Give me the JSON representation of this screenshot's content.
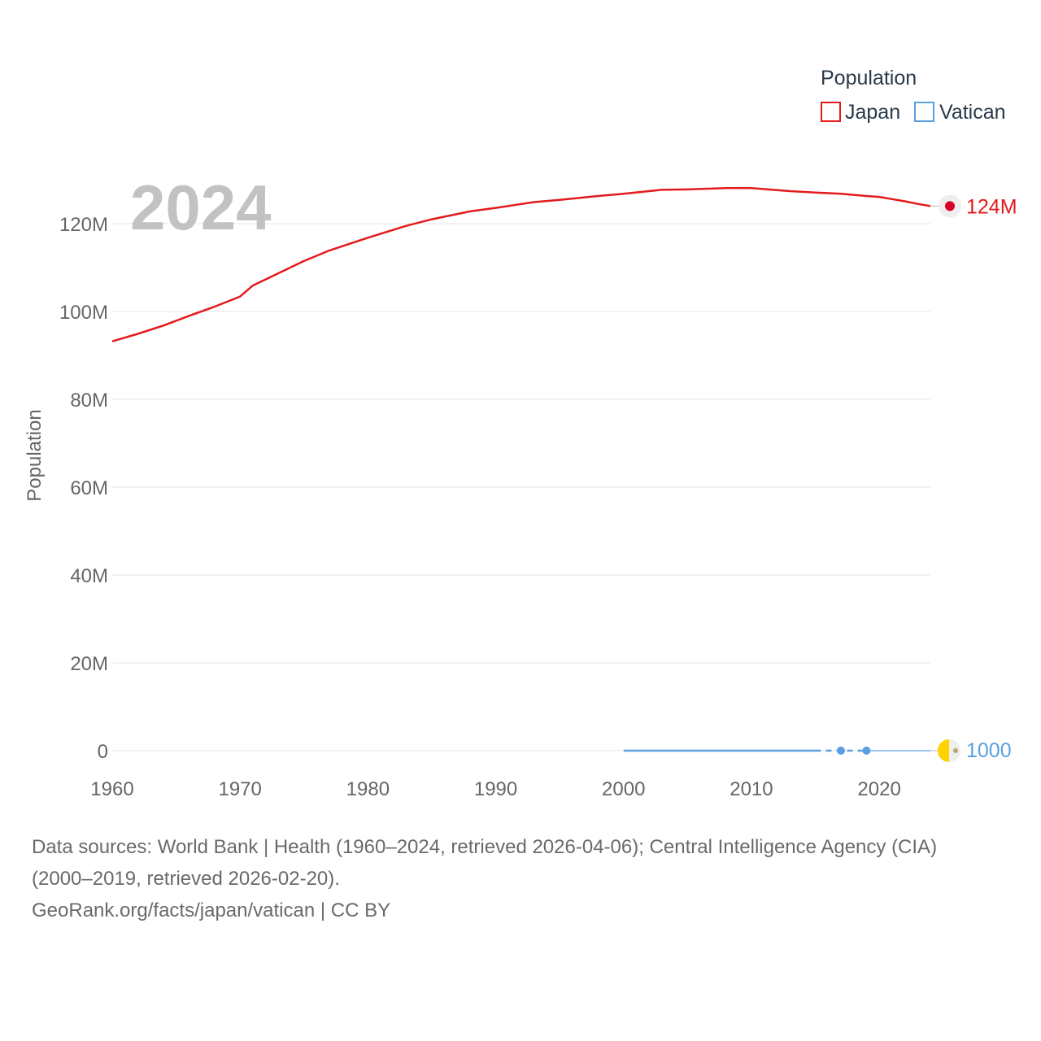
{
  "chart_data": {
    "type": "line",
    "year_label": "2024",
    "ylabel": "Population",
    "xlabel": "",
    "xlim": [
      1960,
      2024
    ],
    "ylim": [
      0,
      130000000
    ],
    "grid": true,
    "legend": {
      "title": "Population",
      "position": "top-right",
      "entries": [
        "Japan",
        "Vatican"
      ]
    },
    "y_ticks": [
      {
        "value": 0,
        "label": "0"
      },
      {
        "value": 20000000,
        "label": "20M"
      },
      {
        "value": 40000000,
        "label": "40M"
      },
      {
        "value": 60000000,
        "label": "60M"
      },
      {
        "value": 80000000,
        "label": "80M"
      },
      {
        "value": 100000000,
        "label": "100M"
      },
      {
        "value": 120000000,
        "label": "120M"
      }
    ],
    "x_ticks": [
      {
        "value": 1960,
        "label": "1960"
      },
      {
        "value": 1970,
        "label": "1970"
      },
      {
        "value": 1980,
        "label": "1980"
      },
      {
        "value": 1990,
        "label": "1990"
      },
      {
        "value": 2000,
        "label": "2000"
      },
      {
        "value": 2010,
        "label": "2010"
      },
      {
        "value": 2020,
        "label": "2020"
      }
    ],
    "series": [
      {
        "name": "Japan",
        "color": "#e31a1c",
        "end_label": "124M",
        "x": [
          1960,
          1962,
          1964,
          1966,
          1968,
          1970,
          1971,
          1973,
          1975,
          1977,
          1980,
          1983,
          1985,
          1988,
          1990,
          1993,
          1995,
          1998,
          2000,
          2003,
          2005,
          2008,
          2010,
          2013,
          2015,
          2017,
          2019,
          2020,
          2021,
          2022,
          2023,
          2024
        ],
        "values": [
          93200000,
          94900000,
          96800000,
          99000000,
          101100000,
          103400000,
          105900000,
          108700000,
          111500000,
          113900000,
          116800000,
          119500000,
          121000000,
          122800000,
          123600000,
          124900000,
          125400000,
          126300000,
          126800000,
          127700000,
          127800000,
          128100000,
          128100000,
          127400000,
          127100000,
          126800000,
          126300000,
          126100000,
          125600000,
          125100000,
          124500000,
          124000000
        ]
      },
      {
        "name": "Vatican",
        "color": "#5a9fe0",
        "end_label": "1000",
        "solid_x": [
          2000,
          2015
        ],
        "solid_values": [
          800,
          800
        ],
        "dashed_x": [
          2015,
          2017,
          2019,
          2024
        ],
        "dashed_values": [
          800,
          1000,
          1000,
          1000
        ],
        "points_x": [
          2017,
          2019
        ],
        "points_values": [
          1000,
          1000
        ]
      }
    ]
  },
  "footer": {
    "sources_line1": "Data sources: World Bank | Health (1960–2024, retrieved 2026-04-06); Central Intelligence Agency (CIA)",
    "sources_line2": "(2000–2019, retrieved 2026-02-20).",
    "attribution": "GeoRank.org/facts/japan/vatican | CC BY"
  }
}
